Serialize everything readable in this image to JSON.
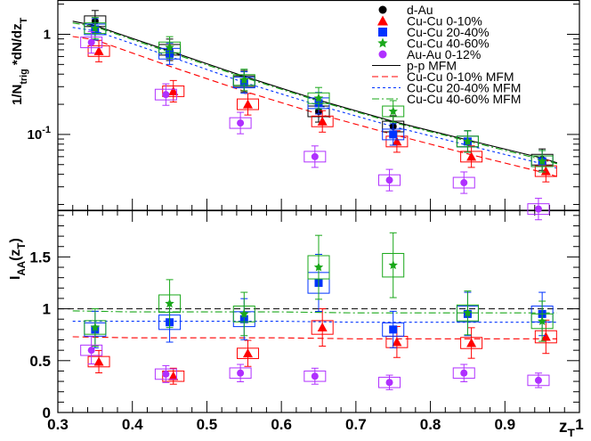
{
  "chart_data": [
    {
      "type": "scatter",
      "panel": "top",
      "yscale": "log",
      "ylim": [
        0.0175,
        2.2
      ],
      "xlim": [
        0.3,
        1.0
      ],
      "ylabel": {
        "base": "1/N",
        "sub": "trig",
        "rest": " *dN/dz",
        "sub2": "T"
      },
      "yticks": [
        {
          "value": 0.1,
          "label": "10⁻¹",
          "base": "10",
          "exp": "-1"
        },
        {
          "value": 1,
          "label": "1"
        }
      ],
      "legend": {
        "position": "top-right",
        "markers": [
          {
            "label": "d-Au",
            "color": "#000000",
            "marker": "circle"
          },
          {
            "label": "Cu-Cu 0-10%",
            "color": "#ff0000",
            "marker": "triangle"
          },
          {
            "label": "Cu-Cu 20-40%",
            "color": "#0033ff",
            "marker": "square"
          },
          {
            "label": "Cu-Cu 40-60%",
            "color": "#1aa81a",
            "marker": "star"
          },
          {
            "label": "Au-Au 0-12%",
            "color": "#b030ff",
            "marker": "circle"
          }
        ],
        "lines": [
          {
            "label": "p-p MFM",
            "color": "#000000",
            "dash": "solid"
          },
          {
            "label": "Cu-Cu 0-10% MFM",
            "color": "#ff0000",
            "dash": "long"
          },
          {
            "label": "Cu-Cu 20-40% MFM",
            "color": "#0033ff",
            "dash": "short"
          },
          {
            "label": "Cu-Cu 40-60% MFM",
            "color": "#1aa81a",
            "dash": "dashdot"
          }
        ]
      },
      "series": [
        {
          "name": "d-Au",
          "color": "#000000",
          "marker": "circle",
          "x": [
            0.35,
            0.45,
            0.55,
            0.65,
            0.75,
            0.85,
            0.95
          ],
          "y": [
            1.35,
            0.7,
            0.34,
            0.17,
            0.12,
            0.085,
            0.056
          ]
        },
        {
          "name": "Cu-Cu 0-10%",
          "color": "#ff0000",
          "marker": "triangle",
          "x": [
            0.355,
            0.455,
            0.555,
            0.655,
            0.755,
            0.855,
            0.955
          ],
          "y": [
            0.68,
            0.27,
            0.2,
            0.135,
            0.085,
            0.06,
            0.043
          ]
        },
        {
          "name": "Cu-Cu 20-40%",
          "color": "#0033ff",
          "marker": "square",
          "x": [
            0.35,
            0.45,
            0.55,
            0.65,
            0.75,
            0.85,
            0.95
          ],
          "y": [
            1.12,
            0.64,
            0.33,
            0.205,
            0.1,
            0.085,
            0.054
          ]
        },
        {
          "name": "Cu-Cu 40-60%",
          "color": "#1aa81a",
          "marker": "star",
          "x": [
            0.35,
            0.45,
            0.55,
            0.65,
            0.75,
            0.85,
            0.95
          ],
          "y": [
            1.15,
            0.74,
            0.35,
            0.23,
            0.17,
            0.085,
            0.054
          ]
        },
        {
          "name": "Au-Au 0-12%",
          "color": "#b030ff",
          "marker": "circle",
          "x": [
            0.345,
            0.445,
            0.545,
            0.645,
            0.745,
            0.845,
            0.945
          ],
          "y": [
            0.83,
            0.25,
            0.13,
            0.06,
            0.035,
            0.033,
            0.018
          ]
        }
      ],
      "curves": [
        {
          "name": "p-p MFM",
          "color": "#000000",
          "dash": "solid",
          "x": [
            0.32,
            0.35,
            0.45,
            0.55,
            0.65,
            0.75,
            0.85,
            0.95,
            0.97
          ],
          "y": [
            1.35,
            1.22,
            0.68,
            0.38,
            0.22,
            0.135,
            0.088,
            0.058,
            0.052
          ]
        },
        {
          "name": "Cu-Cu 0-10% MFM",
          "color": "#ff0000",
          "dash": "long",
          "x": [
            0.32,
            0.35,
            0.45,
            0.55,
            0.65,
            0.75,
            0.85,
            0.95,
            0.97
          ],
          "y": [
            0.95,
            0.88,
            0.48,
            0.27,
            0.16,
            0.1,
            0.064,
            0.042,
            0.038
          ]
        },
        {
          "name": "Cu-Cu 20-40% MFM",
          "color": "#0033ff",
          "dash": "short",
          "x": [
            0.32,
            0.35,
            0.45,
            0.55,
            0.65,
            0.75,
            0.85,
            0.95,
            0.97
          ],
          "y": [
            1.17,
            1.08,
            0.6,
            0.33,
            0.195,
            0.12,
            0.078,
            0.051,
            0.046
          ]
        },
        {
          "name": "Cu-Cu 40-60% MFM",
          "color": "#1aa81a",
          "dash": "dashdot",
          "x": [
            0.32,
            0.35,
            0.45,
            0.55,
            0.65,
            0.75,
            0.85,
            0.95,
            0.97
          ],
          "y": [
            1.3,
            1.19,
            0.66,
            0.37,
            0.215,
            0.132,
            0.086,
            0.056,
            0.051
          ]
        }
      ]
    },
    {
      "type": "scatter",
      "panel": "bottom",
      "ylim": [
        0,
        1.95
      ],
      "xlim": [
        0.3,
        1.0
      ],
      "ylabel": {
        "base": "I",
        "sub": "AA",
        "rest": "(z",
        "sub2": "T",
        "close": ")"
      },
      "xlabel": {
        "base": "z",
        "sub": "T"
      },
      "yticks": [
        {
          "value": 0,
          "label": "0"
        },
        {
          "value": 0.5,
          "label": "0.5"
        },
        {
          "value": 1,
          "label": "1"
        },
        {
          "value": 1.5,
          "label": "1.5"
        }
      ],
      "xticks": [
        {
          "value": 0.3,
          "label": "0.3"
        },
        {
          "value": 0.4,
          "label": "0.4"
        },
        {
          "value": 0.5,
          "label": "0.5"
        },
        {
          "value": 0.6,
          "label": "0.6"
        },
        {
          "value": 0.7,
          "label": "0.7"
        },
        {
          "value": 0.8,
          "label": "0.8"
        },
        {
          "value": 0.9,
          "label": "0.9"
        },
        {
          "value": 1.0,
          "label": "1"
        }
      ],
      "reference_line": {
        "y": 1.0,
        "color": "#000000",
        "dash": "long"
      },
      "series": [
        {
          "name": "Cu-Cu 0-10%",
          "color": "#ff0000",
          "marker": "triangle",
          "x": [
            0.355,
            0.455,
            0.555,
            0.655,
            0.755,
            0.855,
            0.955
          ],
          "y": [
            0.49,
            0.35,
            0.57,
            0.82,
            0.68,
            0.67,
            0.73
          ]
        },
        {
          "name": "Cu-Cu 20-40%",
          "color": "#0033ff",
          "marker": "square",
          "x": [
            0.35,
            0.45,
            0.55,
            0.65,
            0.75,
            0.85,
            0.95
          ],
          "y": [
            0.8,
            0.87,
            0.9,
            1.25,
            0.8,
            0.95,
            0.95
          ]
        },
        {
          "name": "Cu-Cu 40-60%",
          "color": "#1aa81a",
          "marker": "star",
          "x": [
            0.35,
            0.45,
            0.55,
            0.65,
            0.75,
            0.85,
            0.95
          ],
          "y": [
            0.82,
            1.05,
            0.95,
            1.4,
            1.42,
            0.96,
            0.88
          ]
        },
        {
          "name": "Au-Au 0-12%",
          "color": "#b030ff",
          "marker": "circle",
          "x": [
            0.345,
            0.445,
            0.545,
            0.645,
            0.745,
            0.845,
            0.945
          ],
          "y": [
            0.6,
            0.37,
            0.38,
            0.35,
            0.29,
            0.38,
            0.31
          ]
        }
      ],
      "curves": [
        {
          "name": "Cu-Cu 0-10% MFM",
          "color": "#ff0000",
          "dash": "long",
          "x": [
            0.32,
            0.4,
            0.5,
            0.6,
            0.7,
            0.8,
            0.9,
            0.97
          ],
          "y": [
            0.73,
            0.72,
            0.72,
            0.72,
            0.71,
            0.71,
            0.71,
            0.71
          ]
        },
        {
          "name": "Cu-Cu 20-40% MFM",
          "color": "#0033ff",
          "dash": "short",
          "x": [
            0.32,
            0.4,
            0.5,
            0.6,
            0.7,
            0.8,
            0.9,
            0.97
          ],
          "y": [
            0.88,
            0.88,
            0.88,
            0.88,
            0.87,
            0.87,
            0.87,
            0.87
          ]
        },
        {
          "name": "Cu-Cu 40-60% MFM",
          "color": "#1aa81a",
          "dash": "dashdot",
          "x": [
            0.32,
            0.4,
            0.5,
            0.6,
            0.7,
            0.8,
            0.9,
            0.97
          ],
          "y": [
            0.98,
            0.97,
            0.97,
            0.97,
            0.96,
            0.96,
            0.96,
            0.96
          ]
        }
      ]
    }
  ]
}
